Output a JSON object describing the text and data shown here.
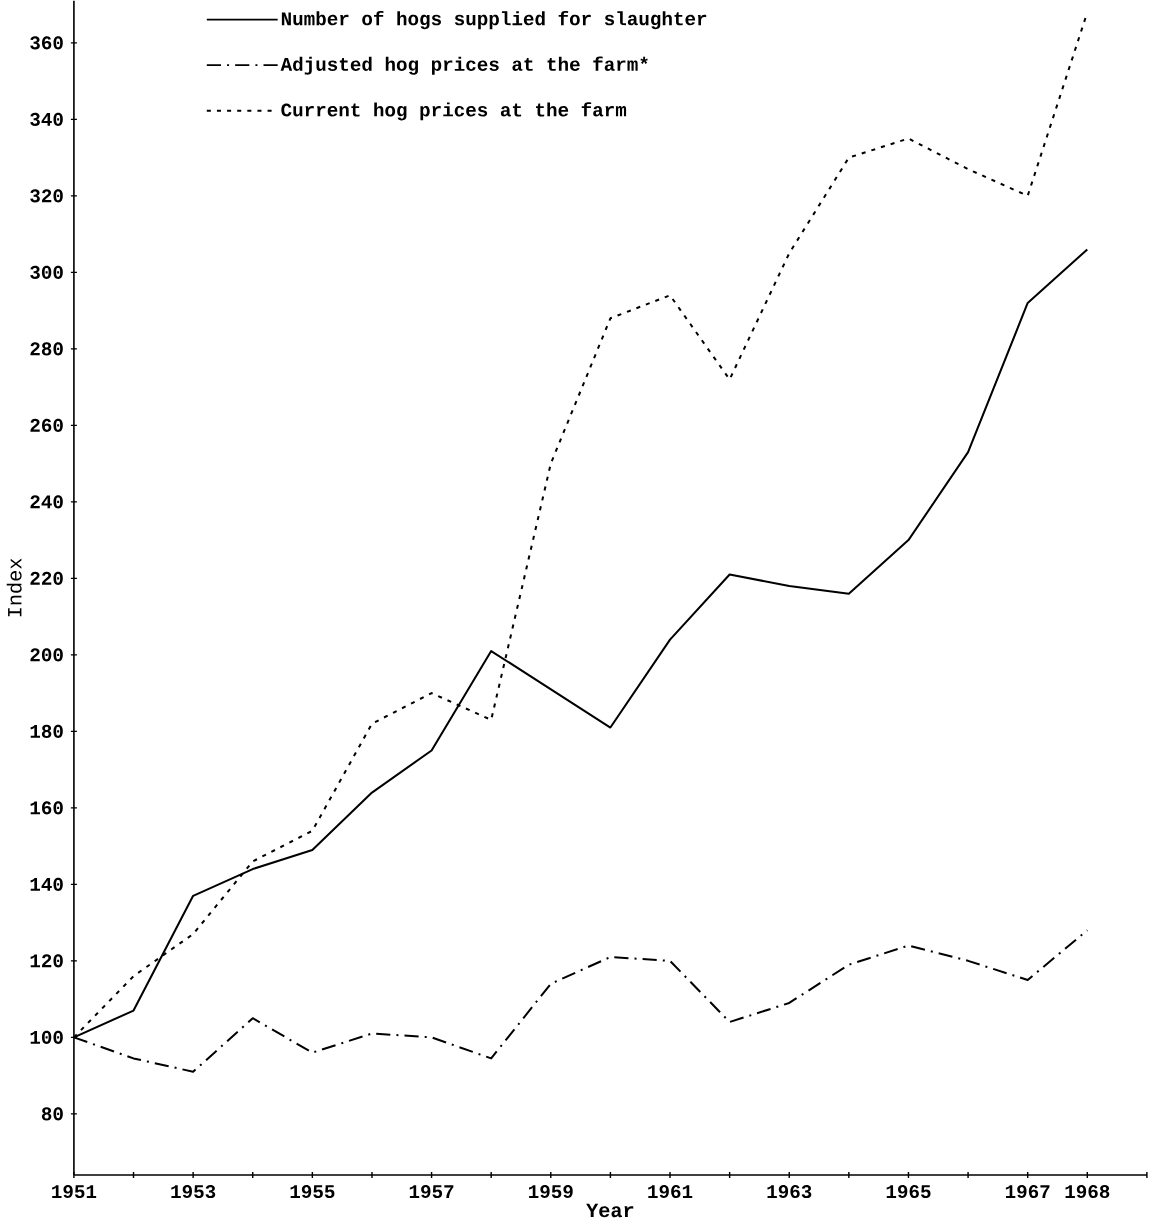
{
  "chart_data": {
    "type": "line",
    "xlabel": "Year",
    "ylabel": "Index",
    "x": [
      1951,
      1952,
      1953,
      1954,
      1955,
      1956,
      1957,
      1958,
      1959,
      1960,
      1961,
      1962,
      1963,
      1964,
      1965,
      1966,
      1967,
      1968
    ],
    "series": [
      {
        "name": "Number of hogs supplied for slaughter",
        "color": "#000000",
        "line_style": "solid",
        "values": [
          100,
          107,
          137,
          144,
          149,
          164,
          175,
          201,
          191,
          181,
          204,
          221,
          218,
          216,
          230,
          253,
          292,
          306
        ]
      },
      {
        "name": "Adjusted hog prices at the farm*",
        "color": "#000000",
        "line_style": "dashdot",
        "values": [
          100,
          94.5,
          91,
          105,
          96,
          101,
          100,
          94.5,
          114,
          121,
          120,
          104,
          109,
          119,
          124,
          120,
          115,
          128
        ]
      },
      {
        "name": "Current hog prices at the farm",
        "color": "#000000",
        "line_style": "dotted",
        "values": [
          100,
          116,
          127,
          146,
          154,
          182,
          190,
          183,
          250,
          288,
          294,
          272,
          305,
          330,
          335,
          327,
          320,
          368
        ]
      }
    ],
    "xlim": [
      1951,
      1969
    ],
    "xticks": [
      1951,
      {
        "value": 1952,
        "label": null
      },
      1953,
      {
        "value": 1954,
        "label": null
      },
      1955,
      {
        "value": 1956,
        "label": null
      },
      1957,
      {
        "value": 1958,
        "label": null
      },
      1959,
      {
        "value": 1960,
        "label": null
      },
      1961,
      {
        "value": 1962,
        "label": null
      },
      1963,
      {
        "value": 1964,
        "label": null
      },
      1965,
      {
        "value": 1966,
        "label": null
      },
      1967,
      1968,
      {
        "value": 1969,
        "label": null
      }
    ],
    "ylim": [
      64,
      371
    ],
    "yticks": [
      80,
      100,
      120,
      140,
      160,
      180,
      200,
      220,
      240,
      260,
      280,
      300,
      320,
      340,
      360
    ],
    "legend": "top left",
    "grid": false,
    "marker": "none"
  }
}
